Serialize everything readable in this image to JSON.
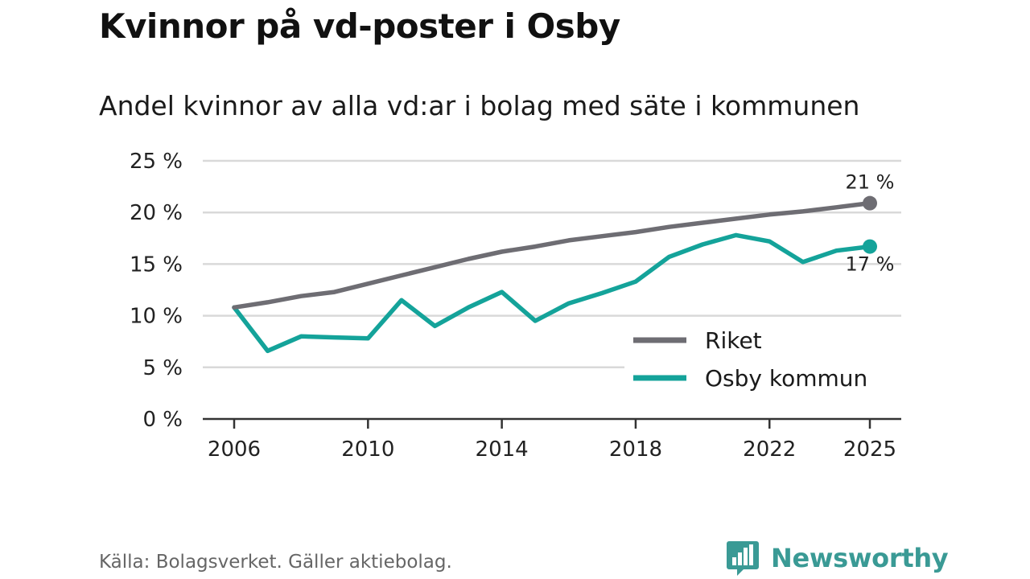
{
  "header": {
    "title": "Kvinnor på vd-poster i Osby",
    "subtitle": "Andel kvinnor av alla vd:ar i bolag med säte i kommunen"
  },
  "footer": {
    "source": "Källa: Bolagsverket. Gäller aktiebolag.",
    "brand": "Newsworthy",
    "brand_icon": "bar-chart-logo-icon"
  },
  "colors": {
    "riket": "#6e6d73",
    "osby": "#14a39a",
    "grid": "#d9d9d9",
    "axis": "#333333",
    "brand": "#3a9a95"
  },
  "chart_data": {
    "type": "line",
    "title": "Kvinnor på vd-poster i Osby",
    "subtitle": "Andel kvinnor av alla vd:ar i bolag med säte i kommunen",
    "xlabel": "",
    "ylabel": "",
    "x": [
      2006,
      2007,
      2008,
      2009,
      2010,
      2011,
      2012,
      2013,
      2014,
      2015,
      2016,
      2017,
      2018,
      2019,
      2020,
      2021,
      2022,
      2023,
      2024,
      2025
    ],
    "series": [
      {
        "name": "Riket",
        "values": [
          10.8,
          11.3,
          11.9,
          12.3,
          13.1,
          13.9,
          14.7,
          15.5,
          16.2,
          16.7,
          17.3,
          17.7,
          18.1,
          18.6,
          19.0,
          19.4,
          19.8,
          20.1,
          20.5,
          20.9
        ],
        "end_label": "21 %"
      },
      {
        "name": "Osby kommun",
        "values": [
          10.8,
          6.6,
          8.0,
          7.9,
          7.8,
          11.5,
          9.0,
          10.8,
          12.3,
          9.5,
          11.2,
          12.2,
          13.3,
          15.7,
          16.9,
          17.8,
          17.2,
          15.2,
          16.3,
          16.7
        ],
        "end_label": "17 %"
      }
    ],
    "x_ticks": [
      "2006",
      "2010",
      "2014",
      "2018",
      "2022",
      "2025"
    ],
    "y_ticks": [
      0,
      5,
      10,
      15,
      20,
      25
    ],
    "y_tick_labels": [
      "0 %",
      "5 %",
      "10 %",
      "15 %",
      "20 %",
      "25 %"
    ],
    "xlim": [
      2006,
      2025
    ],
    "ylim": [
      0,
      25
    ],
    "grid": true,
    "legend_position": "bottom-right",
    "legend": [
      "Riket",
      "Osby kommun"
    ]
  }
}
